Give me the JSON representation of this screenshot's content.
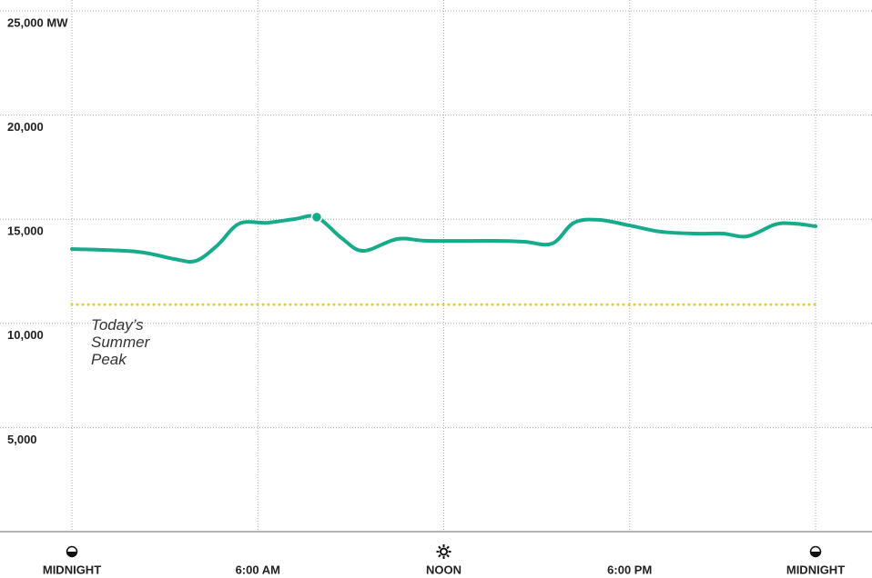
{
  "chart_data": {
    "type": "line",
    "x": [
      0,
      2.1,
      3.3,
      4.0,
      4.7,
      5.4,
      6.3,
      7.2,
      7.9,
      8.7,
      9.4,
      10.5,
      11.5,
      13.6,
      14.6,
      15.5,
      16.2,
      17.0,
      18.0,
      19.0,
      20.1,
      21.0,
      21.8,
      22.7,
      23.3,
      24
    ],
    "series": [
      {
        "color": "#17ab8b",
        "values": [
          13570,
          13440,
          13090,
          13000,
          13750,
          14790,
          14830,
          15010,
          15100,
          14100,
          13480,
          14050,
          13960,
          13960,
          13920,
          13830,
          14830,
          14970,
          14700,
          14400,
          14310,
          14310,
          14180,
          14750,
          14790,
          14660
        ]
      }
    ],
    "reference": {
      "label": "Today’s Summer Peak",
      "value": 10900,
      "color": "#e6cf1e"
    },
    "xlim": [
      0,
      24
    ],
    "xticks": [
      {
        "value": 0,
        "label": "MIDNIGHT"
      },
      {
        "value": 6,
        "label": "6:00 AM"
      },
      {
        "value": 12,
        "label": "NOON"
      },
      {
        "value": 18,
        "label": "6:00 PM"
      },
      {
        "value": 24,
        "label": "MIDNIGHT"
      }
    ],
    "ylim": [
      0,
      25000
    ],
    "yticks": [
      {
        "value": 5000,
        "label": "5,000"
      },
      {
        "value": 10000,
        "label": "10,000"
      },
      {
        "value": 15000,
        "label": "15,000"
      },
      {
        "value": 20000,
        "label": "20,000"
      },
      {
        "value": 25000,
        "label": "25,000 MW"
      }
    ],
    "grid": true
  }
}
